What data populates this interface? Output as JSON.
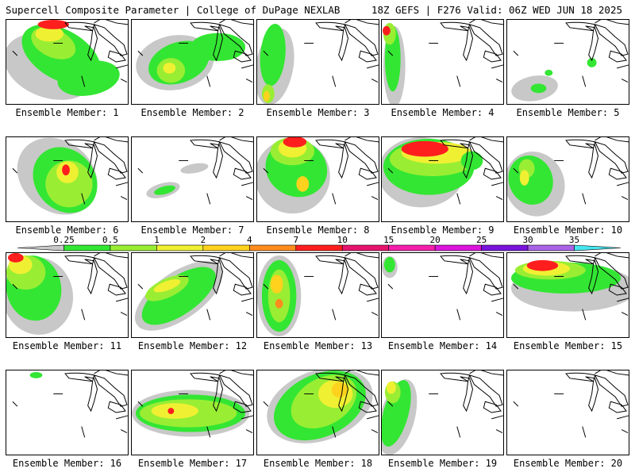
{
  "header": {
    "left": "Supercell Composite Parameter | College of DuPage NEXLAB",
    "right": "18Z GEFS | F276 Valid: 06Z WED JUN 18 2025"
  },
  "members": [
    {
      "label": "Ensemble Member: 1"
    },
    {
      "label": "Ensemble Member: 2"
    },
    {
      "label": "Ensemble Member: 3"
    },
    {
      "label": "Ensemble Member: 4"
    },
    {
      "label": "Ensemble Member: 5"
    },
    {
      "label": "Ensemble Member: 6"
    },
    {
      "label": "Ensemble Member: 7"
    },
    {
      "label": "Ensemble Member: 8"
    },
    {
      "label": "Ensemble Member: 9"
    },
    {
      "label": "Ensemble Member: 10"
    },
    {
      "label": "Ensemble Member: 11"
    },
    {
      "label": "Ensemble Member: 12"
    },
    {
      "label": "Ensemble Member: 13"
    },
    {
      "label": "Ensemble Member: 14"
    },
    {
      "label": "Ensemble Member: 15"
    },
    {
      "label": "Ensemble Member: 16"
    },
    {
      "label": "Ensemble Member: 17"
    },
    {
      "label": "Ensemble Member: 18"
    },
    {
      "label": "Ensemble Member: 19"
    },
    {
      "label": "Ensemble Member: 20"
    }
  ],
  "legend": {
    "levels": [
      "0.25",
      "0.5",
      "1",
      "2",
      "4",
      "7",
      "10",
      "15",
      "20",
      "25",
      "30",
      "35"
    ],
    "colors": [
      "#c8c8c8",
      "#33e633",
      "#99ee33",
      "#f0f033",
      "#ffd21e",
      "#ff8c1e",
      "#ff1e1e",
      "#e6146e",
      "#f51eaa",
      "#dc14dc",
      "#7814dc",
      "#aa64e6",
      "#46e6f0"
    ]
  }
}
